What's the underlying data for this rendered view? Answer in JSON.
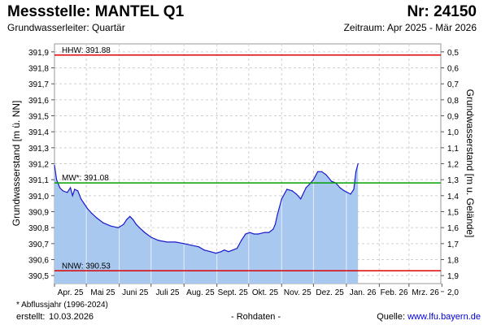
{
  "header": {
    "title": "Messstelle: MANTEL Q1",
    "number": "Nr: 24150",
    "subtitle": "Grundwasserleiter: Quartär",
    "period": "Zeitraum: Apr 2025 - Mär 2026"
  },
  "footer": {
    "footnote": "* Abflussjahr (1996-2024)",
    "created_label": "erstellt:",
    "created_date": "10.03.2026",
    "raw_data": "- Rohdaten -",
    "source_label": "Quelle:",
    "source_link": "www.lfu.bayern.de"
  },
  "chart_data": {
    "type": "area",
    "ylabel": "Grundwasserstand [m ü. NN]",
    "y2label": "Grundwasserstand [m u. Gelände]",
    "ylim": [
      390.45,
      391.95
    ],
    "yticks": [
      390.5,
      390.6,
      390.7,
      390.8,
      390.9,
      391.0,
      391.1,
      391.2,
      391.3,
      391.4,
      391.5,
      391.6,
      391.7,
      391.8,
      391.9
    ],
    "ytick_labels": [
      "390,5",
      "390,6",
      "390,7",
      "390,8",
      "390,9",
      "391,0",
      "391,1",
      "391,2",
      "391,3",
      "391,4",
      "391,5",
      "391,6",
      "391,7",
      "391,8",
      "391,9"
    ],
    "y2_ticks": [
      0.5,
      0.6,
      0.7,
      0.8,
      0.9,
      1.0,
      1.1,
      1.2,
      1.3,
      1.4,
      1.5,
      1.6,
      1.7,
      1.8,
      1.9,
      2.0
    ],
    "y2_tick_labels": [
      "0,5",
      "0,6",
      "0,7",
      "0,8",
      "0,9",
      "1,0",
      "1,1",
      "1,2",
      "1,3",
      "1,4",
      "1,5",
      "1,6",
      "1,7",
      "1,8",
      "1,9",
      "2,0"
    ],
    "y2_reference": 392.4,
    "xlim": [
      "2025-04-01",
      "2026-03-31"
    ],
    "xticks": [
      "Apr. 25",
      "Mai 25",
      "Juni 25",
      "Juli 25",
      "Aug. 25",
      "Sept. 25",
      "Okt. 25",
      "Nov. 25",
      "Dez. 25",
      "Jan. 26",
      "Feb. 26",
      "Mrz. 26"
    ],
    "grid": true,
    "reference_lines": [
      {
        "label": "HHW: 391.88",
        "value": 391.88,
        "color": "#dd0000"
      },
      {
        "label": "MW*: 391.08",
        "value": 391.08,
        "color": "#00a000"
      },
      {
        "label": "NNW: 390.53",
        "value": 390.53,
        "color": "#dd0000"
      }
    ],
    "line_color": "#1a1acc",
    "fill_color": "#a8c8f0",
    "series": [
      {
        "x": [
          "2025-04-01",
          "2025-04-03",
          "2025-04-06",
          "2025-04-09",
          "2025-04-13",
          "2025-04-16",
          "2025-04-18",
          "2025-04-20",
          "2025-04-23",
          "2025-04-26",
          "2025-04-29",
          "2025-05-02",
          "2025-05-06",
          "2025-05-11",
          "2025-05-17",
          "2025-05-24",
          "2025-05-31",
          "2025-06-05",
          "2025-06-08",
          "2025-06-11",
          "2025-06-14",
          "2025-06-17",
          "2025-06-20",
          "2025-06-25",
          "2025-07-01",
          "2025-07-08",
          "2025-07-16",
          "2025-07-24",
          "2025-08-01",
          "2025-08-08",
          "2025-08-15",
          "2025-08-20",
          "2025-08-26",
          "2025-08-31",
          "2025-09-05",
          "2025-09-08",
          "2025-09-12",
          "2025-09-16",
          "2025-09-20",
          "2025-09-24",
          "2025-09-28",
          "2025-10-02",
          "2025-10-06",
          "2025-10-10",
          "2025-10-16",
          "2025-10-20",
          "2025-10-24",
          "2025-10-26",
          "2025-10-28",
          "2025-11-01",
          "2025-11-06",
          "2025-11-11",
          "2025-11-15",
          "2025-11-19",
          "2025-11-24",
          "2025-11-27",
          "2025-12-01",
          "2025-12-05",
          "2025-12-09",
          "2025-12-13",
          "2025-12-18",
          "2025-12-22",
          "2025-12-26",
          "2025-12-30",
          "2026-01-02",
          "2026-01-05",
          "2026-01-08",
          "2026-01-10",
          "2026-01-12"
        ],
        "y": [
          391.19,
          391.1,
          391.05,
          391.03,
          391.02,
          391.05,
          391.0,
          391.04,
          391.03,
          390.98,
          390.95,
          390.92,
          390.89,
          390.86,
          390.83,
          390.81,
          390.8,
          390.82,
          390.85,
          390.87,
          390.85,
          390.82,
          390.8,
          390.77,
          390.74,
          390.72,
          390.71,
          390.71,
          390.7,
          390.69,
          390.68,
          390.66,
          390.65,
          390.64,
          390.65,
          390.66,
          390.65,
          390.66,
          390.67,
          390.72,
          390.76,
          390.77,
          390.76,
          390.76,
          390.77,
          390.77,
          390.79,
          390.82,
          390.88,
          390.98,
          391.04,
          391.03,
          391.01,
          390.98,
          391.05,
          391.07,
          391.1,
          391.15,
          391.15,
          391.13,
          391.09,
          391.08,
          391.05,
          391.03,
          391.02,
          391.01,
          391.04,
          391.15,
          391.2
        ]
      }
    ]
  }
}
